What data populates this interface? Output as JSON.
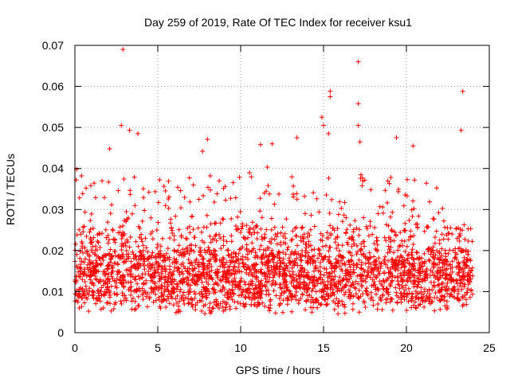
{
  "chart_data": {
    "type": "scatter",
    "title": "Day 259 of 2019, Rate Of TEC Index for receiver ksu1",
    "xlabel": "GPS time / hours",
    "ylabel": "ROTI / TECUs",
    "xlim": [
      0,
      25
    ],
    "ylim": [
      0,
      0.07
    ],
    "xticks": [
      "0",
      "5",
      "10",
      "15",
      "20",
      "25"
    ],
    "yticks": [
      "0",
      "0.01",
      "0.02",
      "0.03",
      "0.04",
      "0.05",
      "0.06",
      "0.07"
    ],
    "grid": true,
    "marker": "+",
    "color": "#ff0000",
    "series": [
      {
        "name": "ROTI",
        "description": "dense cloud of ROTI samples, bulk between 0.005 and 0.025 TECU",
        "x_range": [
          0,
          24
        ],
        "outliers": [
          {
            "x": 2.9,
            "y": 0.069
          },
          {
            "x": 17.1,
            "y": 0.066
          },
          {
            "x": 23.4,
            "y": 0.0588
          },
          {
            "x": 15.4,
            "y": 0.0588
          },
          {
            "x": 15.4,
            "y": 0.0575
          },
          {
            "x": 17.1,
            "y": 0.0558
          },
          {
            "x": 14.9,
            "y": 0.0525
          },
          {
            "x": 15.0,
            "y": 0.0505
          },
          {
            "x": 2.8,
            "y": 0.0505
          },
          {
            "x": 17.1,
            "y": 0.0505
          },
          {
            "x": 23.3,
            "y": 0.0493
          },
          {
            "x": 3.3,
            "y": 0.0493
          },
          {
            "x": 3.8,
            "y": 0.0485
          },
          {
            "x": 15.3,
            "y": 0.0485
          },
          {
            "x": 19.4,
            "y": 0.0475
          },
          {
            "x": 13.4,
            "y": 0.0475
          },
          {
            "x": 11.2,
            "y": 0.0458
          },
          {
            "x": 11.9,
            "y": 0.046
          },
          {
            "x": 20.4,
            "y": 0.0455
          },
          {
            "x": 17.2,
            "y": 0.0465
          },
          {
            "x": 2.1,
            "y": 0.0448
          },
          {
            "x": 7.7,
            "y": 0.0442
          },
          {
            "x": 0.1,
            "y": 0.0398
          },
          {
            "x": 0.4,
            "y": 0.0382
          }
        ]
      }
    ]
  }
}
